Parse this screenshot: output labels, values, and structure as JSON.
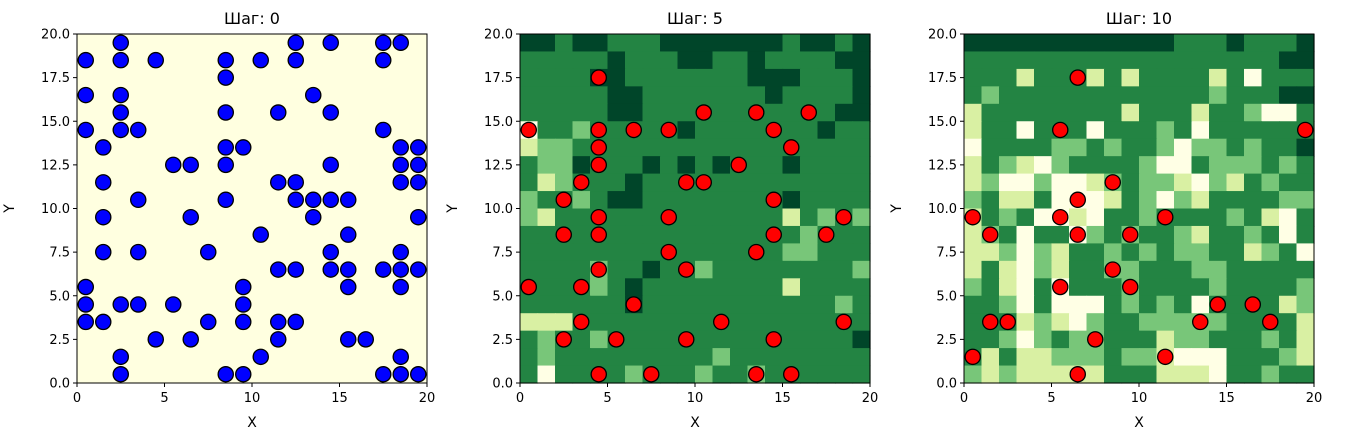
{
  "chart_data": [
    {
      "type": "scatter",
      "title": "Шаг: 0",
      "xlabel": "X",
      "ylabel": "Y",
      "xlim": [
        0,
        20
      ],
      "ylim": [
        0,
        20
      ],
      "background": "#ffffe0",
      "marker_color": "#0000ff",
      "xticks": [
        "0",
        "5",
        "10",
        "15",
        "20"
      ],
      "yticks": [
        "0.0",
        "2.5",
        "5.0",
        "7.5",
        "10.0",
        "12.5",
        "15.0",
        "17.5",
        "20.0"
      ],
      "points": [
        [
          0.5,
          18.5
        ],
        [
          0.5,
          16.5
        ],
        [
          0.5,
          14.5
        ],
        [
          2.5,
          19.5
        ],
        [
          2.5,
          18.5
        ],
        [
          4.5,
          18.5
        ],
        [
          2.5,
          16.5
        ],
        [
          2.5,
          15.5
        ],
        [
          2.5,
          14.5
        ],
        [
          3.5,
          14.5
        ],
        [
          1.5,
          13.5
        ],
        [
          1.5,
          11.5
        ],
        [
          1.5,
          9.5
        ],
        [
          1.5,
          7.5
        ],
        [
          3.5,
          10.5
        ],
        [
          3.5,
          7.5
        ],
        [
          0.5,
          5.5
        ],
        [
          0.5,
          4.5
        ],
        [
          0.5,
          3.5
        ],
        [
          1.5,
          3.5
        ],
        [
          2.5,
          4.5
        ],
        [
          3.5,
          4.5
        ],
        [
          2.5,
          1.5
        ],
        [
          2.5,
          0.5
        ],
        [
          4.5,
          2.5
        ],
        [
          5.5,
          4.5
        ],
        [
          6.5,
          2.5
        ],
        [
          5.5,
          12.5
        ],
        [
          6.5,
          12.5
        ],
        [
          6.5,
          9.5
        ],
        [
          7.5,
          7.5
        ],
        [
          7.5,
          3.5
        ],
        [
          8.5,
          18.5
        ],
        [
          8.5,
          17.5
        ],
        [
          8.5,
          15.5
        ],
        [
          8.5,
          13.5
        ],
        [
          9.5,
          13.5
        ],
        [
          8.5,
          12.5
        ],
        [
          8.5,
          10.5
        ],
        [
          9.5,
          5.5
        ],
        [
          9.5,
          4.5
        ],
        [
          9.5,
          3.5
        ],
        [
          8.5,
          0.5
        ],
        [
          9.5,
          0.5
        ],
        [
          10.5,
          18.5
        ],
        [
          12.5,
          19.5
        ],
        [
          12.5,
          18.5
        ],
        [
          11.5,
          15.5
        ],
        [
          10.5,
          8.5
        ],
        [
          10.5,
          1.5
        ],
        [
          11.5,
          11.5
        ],
        [
          12.5,
          11.5
        ],
        [
          12.5,
          10.5
        ],
        [
          11.5,
          6.5
        ],
        [
          12.5,
          6.5
        ],
        [
          11.5,
          3.5
        ],
        [
          12.5,
          3.5
        ],
        [
          11.5,
          2.5
        ],
        [
          13.5,
          16.5
        ],
        [
          14.5,
          19.5
        ],
        [
          14.5,
          15.5
        ],
        [
          14.5,
          12.5
        ],
        [
          13.5,
          10.5
        ],
        [
          14.5,
          10.5
        ],
        [
          15.5,
          10.5
        ],
        [
          13.5,
          9.5
        ],
        [
          15.5,
          8.5
        ],
        [
          14.5,
          7.5
        ],
        [
          14.5,
          6.5
        ],
        [
          15.5,
          6.5
        ],
        [
          15.5,
          5.5
        ],
        [
          15.5,
          2.5
        ],
        [
          16.5,
          2.5
        ],
        [
          17.5,
          19.5
        ],
        [
          18.5,
          19.5
        ],
        [
          17.5,
          18.5
        ],
        [
          17.5,
          14.5
        ],
        [
          18.5,
          13.5
        ],
        [
          19.5,
          13.5
        ],
        [
          18.5,
          12.5
        ],
        [
          19.5,
          12.5
        ],
        [
          18.5,
          11.5
        ],
        [
          19.5,
          11.5
        ],
        [
          19.5,
          9.5
        ],
        [
          18.5,
          7.5
        ],
        [
          17.5,
          6.5
        ],
        [
          18.5,
          6.5
        ],
        [
          19.5,
          6.5
        ],
        [
          18.5,
          5.5
        ],
        [
          18.5,
          1.5
        ],
        [
          17.5,
          0.5
        ],
        [
          18.5,
          0.5
        ],
        [
          19.5,
          0.5
        ]
      ]
    },
    {
      "type": "heatmap",
      "title": "Шаг: 5",
      "xlabel": "X",
      "ylabel": "Y",
      "xlim": [
        0,
        20
      ],
      "ylim": [
        0,
        20
      ],
      "colormap": "YlGn",
      "value_range": [
        0,
        4
      ],
      "marker_color": "#ff0000",
      "xticks": [
        "0",
        "5",
        "10",
        "15",
        "20"
      ],
      "yticks": [
        "0.0",
        "2.5",
        "5.0",
        "7.5",
        "10.0",
        "12.5",
        "15.0",
        "17.5",
        "20.0"
      ],
      "grid_rows_top_to_bottom": [
        "44344333444444434434",
        "33333433344334333344",
        "33334433333334443334",
        "33333443333333433334",
        "33333443333333333344",
        "03323333343333333433",
        "12233333333333333333",
        "32243334343433343333",
        "31233343333333333333",
        "23323443333333343333",
        "21333333333333313232",
        "33333333333333332333",
        "33333333333333322333",
        "33332334332333333332",
        "33332343333333313333",
        "33333343333333333323",
        "11133333333333333333",
        "32332333333333333334",
        "32333333333233333333",
        "30333323332332333333"
      ],
      "points": [
        [
          0.5,
          14.5
        ],
        [
          4.5,
          17.5
        ],
        [
          4.5,
          14.5
        ],
        [
          4.5,
          13.5
        ],
        [
          4.5,
          12.5
        ],
        [
          6.5,
          14.5
        ],
        [
          8.5,
          14.5
        ],
        [
          10.5,
          15.5
        ],
        [
          13.5,
          15.5
        ],
        [
          14.5,
          14.5
        ],
        [
          16.5,
          15.5
        ],
        [
          15.5,
          13.5
        ],
        [
          12.5,
          12.5
        ],
        [
          3.5,
          11.5
        ],
        [
          9.5,
          11.5
        ],
        [
          10.5,
          11.5
        ],
        [
          2.5,
          10.5
        ],
        [
          14.5,
          10.5
        ],
        [
          4.5,
          9.5
        ],
        [
          8.5,
          9.5
        ],
        [
          18.5,
          9.5
        ],
        [
          2.5,
          8.5
        ],
        [
          4.5,
          8.5
        ],
        [
          14.5,
          8.5
        ],
        [
          17.5,
          8.5
        ],
        [
          8.5,
          7.5
        ],
        [
          13.5,
          7.5
        ],
        [
          4.5,
          6.5
        ],
        [
          9.5,
          6.5
        ],
        [
          0.5,
          5.5
        ],
        [
          3.5,
          5.5
        ],
        [
          6.5,
          4.5
        ],
        [
          3.5,
          3.5
        ],
        [
          11.5,
          3.5
        ],
        [
          18.5,
          3.5
        ],
        [
          2.5,
          2.5
        ],
        [
          5.5,
          2.5
        ],
        [
          9.5,
          2.5
        ],
        [
          14.5,
          2.5
        ],
        [
          4.5,
          0.5
        ],
        [
          7.5,
          0.5
        ],
        [
          13.5,
          0.5
        ],
        [
          15.5,
          0.5
        ]
      ]
    },
    {
      "type": "heatmap",
      "title": "Шаг: 10",
      "xlabel": "X",
      "ylabel": "Y",
      "xlim": [
        0,
        20
      ],
      "ylim": [
        0,
        20
      ],
      "colormap": "YlGn",
      "value_range": [
        0,
        4
      ],
      "marker_color": "#ff0000",
      "xticks": [
        "0",
        "5",
        "10",
        "15",
        "20"
      ],
      "yticks": [
        "0.0",
        "2.5",
        "5.0",
        "7.5",
        "10.0",
        "12.5",
        "15.0",
        "17.5",
        "20.0"
      ],
      "grid_rows_top_to_bottom": [
        "44444444444433343334",
        "33333333333333333344",
        "33313331313333130333",
        "32333333333333233344",
        "13333333313331332003",
        "13303330333230333333",
        "03333223233202232334",
        "13210233332003222323",
        "12002001232210213233",
        "23113000132021333322",
        "13230010332333323103",
        "12303302323321332303",
        "11202133232322331230",
        "13102133223332233333",
        "23103033323333233332",
        "33203000323230333312",
        "33312102332222233331",
        "33202322333122333231",
        "31311222322100033321",
        "21211111333111033233"
      ],
      "points": [
        [
          6.5,
          17.5
        ],
        [
          5.5,
          14.5
        ],
        [
          19.5,
          14.5
        ],
        [
          8.5,
          11.5
        ],
        [
          6.5,
          10.5
        ],
        [
          0.5,
          9.5
        ],
        [
          5.5,
          9.5
        ],
        [
          11.5,
          9.5
        ],
        [
          1.5,
          8.5
        ],
        [
          6.5,
          8.5
        ],
        [
          9.5,
          8.5
        ],
        [
          8.5,
          6.5
        ],
        [
          5.5,
          5.5
        ],
        [
          9.5,
          5.5
        ],
        [
          14.5,
          4.5
        ],
        [
          16.5,
          4.5
        ],
        [
          1.5,
          3.5
        ],
        [
          2.5,
          3.5
        ],
        [
          13.5,
          3.5
        ],
        [
          17.5,
          3.5
        ],
        [
          7.5,
          2.5
        ],
        [
          0.5,
          1.5
        ],
        [
          11.5,
          1.5
        ],
        [
          6.5,
          0.5
        ]
      ]
    }
  ]
}
